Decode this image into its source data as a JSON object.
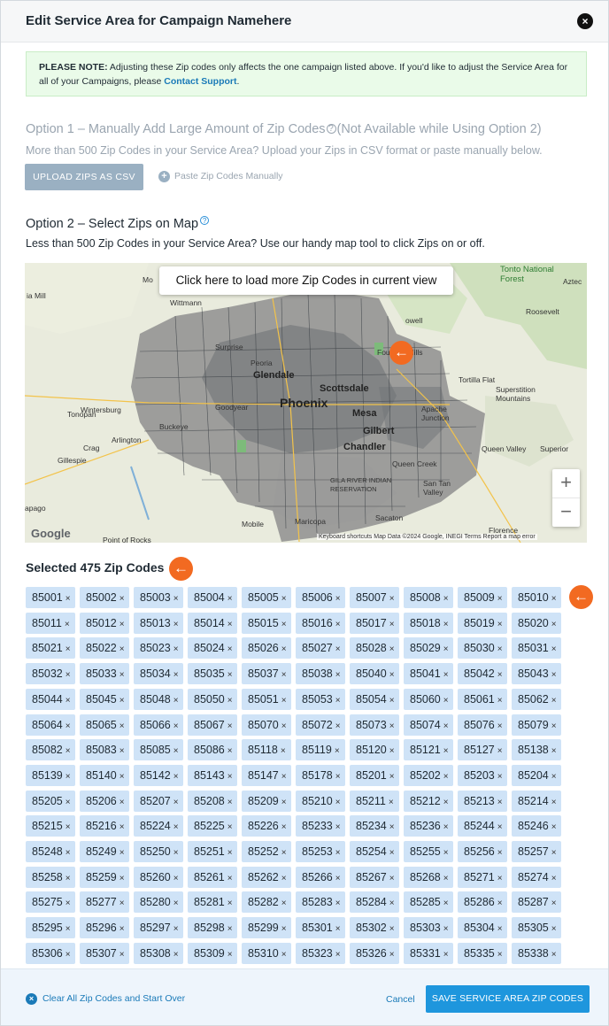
{
  "modal": {
    "title": "Edit Service Area for Campaign Namehere",
    "close_icon": "×"
  },
  "note": {
    "label": "PLEASE NOTE:",
    "text": " Adjusting these Zip codes only affects the one campaign listed above. If you'd like to adjust the Service Area for all of your Campaigns, please ",
    "link": "Contact Support",
    "end": "."
  },
  "option1": {
    "title_a": "Option 1 – Manually Add Large Amount of Zip Codes",
    "title_b": "(Not Available while Using Option 2)",
    "subtitle": "More than 500 Zip Codes in your Service Area? Upload your Zips in CSV format or paste manually below.",
    "upload_label": "UPLOAD ZIPS AS CSV",
    "paste_label": "Paste Zip Codes Manually"
  },
  "option2": {
    "title": "Option 2 – Select Zips on Map",
    "subtitle": "Less than 500 Zip Codes in your Service Area? Use our handy map tool to click Zips on or off."
  },
  "map": {
    "load_button": "Click here to load more Zip Codes in current view",
    "zoom_in": "+",
    "zoom_out": "−",
    "attribution": "Keyboard shortcuts    Map Data ©2024 Google, INEGI    Terms    Report a map error",
    "logo": "Google",
    "labels": {
      "phoenix": "Phoenix",
      "mesa": "Mesa",
      "gilbert": "Gilbert",
      "chandler": "Chandler",
      "scottsdale": "Scottsdale",
      "glendale": "Glendale",
      "goodyear": "Goodyear",
      "buckeye": "Buckeye",
      "tonopah": "Tonopah",
      "wintersburg": "Wintersburg",
      "arlington": "Arlington",
      "crag": "Crag",
      "gillespie": "Gillespie",
      "wittmann": "Wittmann",
      "surprise": "Surprise",
      "peoria": "Peoria",
      "fountain_hills": "Fountain Hills",
      "tortilla_flat": "Tortilla Flat",
      "superstition": "Superstition Mountains",
      "apache_junction": "Apache Junction",
      "queen_creek": "Queen Creek",
      "queen_valley": "Queen Valley",
      "superior": "Superior",
      "san_tan_valley": "San Tan Valley",
      "florence": "Florence",
      "maricopa": "Maricopa",
      "mobile": "Mobile",
      "sacaton": "Sacaton",
      "gila_river": "GILA RIVER INDIAN RESERVATION",
      "tonto": "Tonto National Forest",
      "roosevelt": "Roosevelt",
      "aztec": "Aztec",
      "papago": "apago",
      "mia_mill": "ia Mill",
      "mo": "Mo",
      "point_of_rocks": "Point of Rocks",
      "gila_river_water": "Gila River",
      "cave_creek": "owell"
    }
  },
  "selected": {
    "title": "Selected 475 Zip Codes"
  },
  "zips": [
    "85001",
    "85002",
    "85003",
    "85004",
    "85005",
    "85006",
    "85007",
    "85008",
    "85009",
    "85010",
    "85011",
    "85012",
    "85013",
    "85014",
    "85015",
    "85016",
    "85017",
    "85018",
    "85019",
    "85020",
    "85021",
    "85022",
    "85023",
    "85024",
    "85026",
    "85027",
    "85028",
    "85029",
    "85030",
    "85031",
    "85032",
    "85033",
    "85034",
    "85035",
    "85037",
    "85038",
    "85040",
    "85041",
    "85042",
    "85043",
    "85044",
    "85045",
    "85048",
    "85050",
    "85051",
    "85053",
    "85054",
    "85060",
    "85061",
    "85062",
    "85064",
    "85065",
    "85066",
    "85067",
    "85070",
    "85072",
    "85073",
    "85074",
    "85076",
    "85079",
    "85082",
    "85083",
    "85085",
    "85086",
    "85118",
    "85119",
    "85120",
    "85121",
    "85127",
    "85138",
    "85139",
    "85140",
    "85142",
    "85143",
    "85147",
    "85178",
    "85201",
    "85202",
    "85203",
    "85204",
    "85205",
    "85206",
    "85207",
    "85208",
    "85209",
    "85210",
    "85211",
    "85212",
    "85213",
    "85214",
    "85215",
    "85216",
    "85224",
    "85225",
    "85226",
    "85233",
    "85234",
    "85236",
    "85244",
    "85246",
    "85248",
    "85249",
    "85250",
    "85251",
    "85252",
    "85253",
    "85254",
    "85255",
    "85256",
    "85257",
    "85258",
    "85259",
    "85260",
    "85261",
    "85262",
    "85266",
    "85267",
    "85268",
    "85271",
    "85274",
    "85275",
    "85277",
    "85280",
    "85281",
    "85282",
    "85283",
    "85284",
    "85285",
    "85286",
    "85287",
    "85295",
    "85296",
    "85297",
    "85298",
    "85299",
    "85301",
    "85302",
    "85303",
    "85304",
    "85305",
    "85306",
    "85307",
    "85308",
    "85309",
    "85310",
    "85323",
    "85326",
    "85331",
    "85335",
    "85338"
  ],
  "zip_remove_icon": "×",
  "arrows": {
    "glyph": "←"
  },
  "footer": {
    "clear_icon": "×",
    "clear_label": "Clear All Zip Codes and Start Over",
    "cancel_label": "Cancel",
    "save_label": "SAVE SERVICE AREA ZIP CODES"
  },
  "colors": {
    "accent": "#1e96dd",
    "zip_chip": "#cfe3f7",
    "arrow": "#f26a21",
    "note_bg": "#eafbe9"
  }
}
